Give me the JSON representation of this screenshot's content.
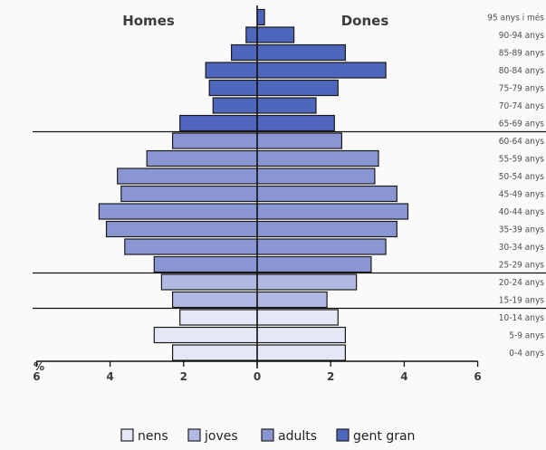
{
  "chart_data": {
    "type": "bar",
    "subtype": "population-pyramid",
    "header_left": "Homes",
    "header_right": "Dones",
    "unit_label": "%",
    "xlim": [
      -6,
      6
    ],
    "x_ticks": [
      -6,
      -4,
      -2,
      0,
      2,
      4,
      6
    ],
    "x_tick_labels": [
      "6",
      "4",
      "2",
      "0",
      "2",
      "4",
      "6"
    ],
    "categories": [
      "0-4 anys",
      "5-9 anys",
      "10-14 anys",
      "15-19 anys",
      "20-24 anys",
      "25-29 anys",
      "30-34 anys",
      "35-39 anys",
      "40-44 anys",
      "45-49 anys",
      "50-54 anys",
      "55-59 anys",
      "60-64 anys",
      "65-69 anys",
      "70-74 anys",
      "75-79 anys",
      "80-84 anys",
      "85-89 anys",
      "90-94 anys",
      "95 anys i més"
    ],
    "group_of_category": [
      "nens",
      "nens",
      "nens",
      "joves",
      "joves",
      "adults",
      "adults",
      "adults",
      "adults",
      "adults",
      "adults",
      "adults",
      "adults",
      "gent gran",
      "gent gran",
      "gent gran",
      "gent gran",
      "gent gran",
      "gent gran",
      "gent gran"
    ],
    "series": [
      {
        "name": "Homes",
        "values": [
          2.3,
          2.8,
          2.1,
          2.3,
          2.6,
          2.8,
          3.6,
          4.1,
          4.3,
          3.7,
          3.8,
          3.0,
          2.3,
          2.1,
          1.2,
          1.3,
          1.4,
          0.7,
          0.3,
          0.0
        ]
      },
      {
        "name": "Dones",
        "values": [
          2.4,
          2.4,
          2.2,
          1.9,
          2.7,
          3.1,
          3.5,
          3.8,
          4.1,
          3.8,
          3.2,
          3.3,
          2.3,
          2.1,
          1.6,
          2.2,
          3.5,
          2.4,
          1.0,
          0.2
        ]
      }
    ],
    "legend": [
      {
        "key": "nens",
        "label": "nens",
        "color": "#e4e7f5"
      },
      {
        "key": "joves",
        "label": "joves",
        "color": "#b1b9e3"
      },
      {
        "key": "adults",
        "label": "adults",
        "color": "#8a96d3"
      },
      {
        "key": "gent gran",
        "label": "gent gran",
        "color": "#4f66bd"
      }
    ],
    "legend_position": "bottom",
    "grid": false,
    "colors": {
      "text": "#3b3b3b",
      "bar_border": "#1a1a1a"
    }
  }
}
